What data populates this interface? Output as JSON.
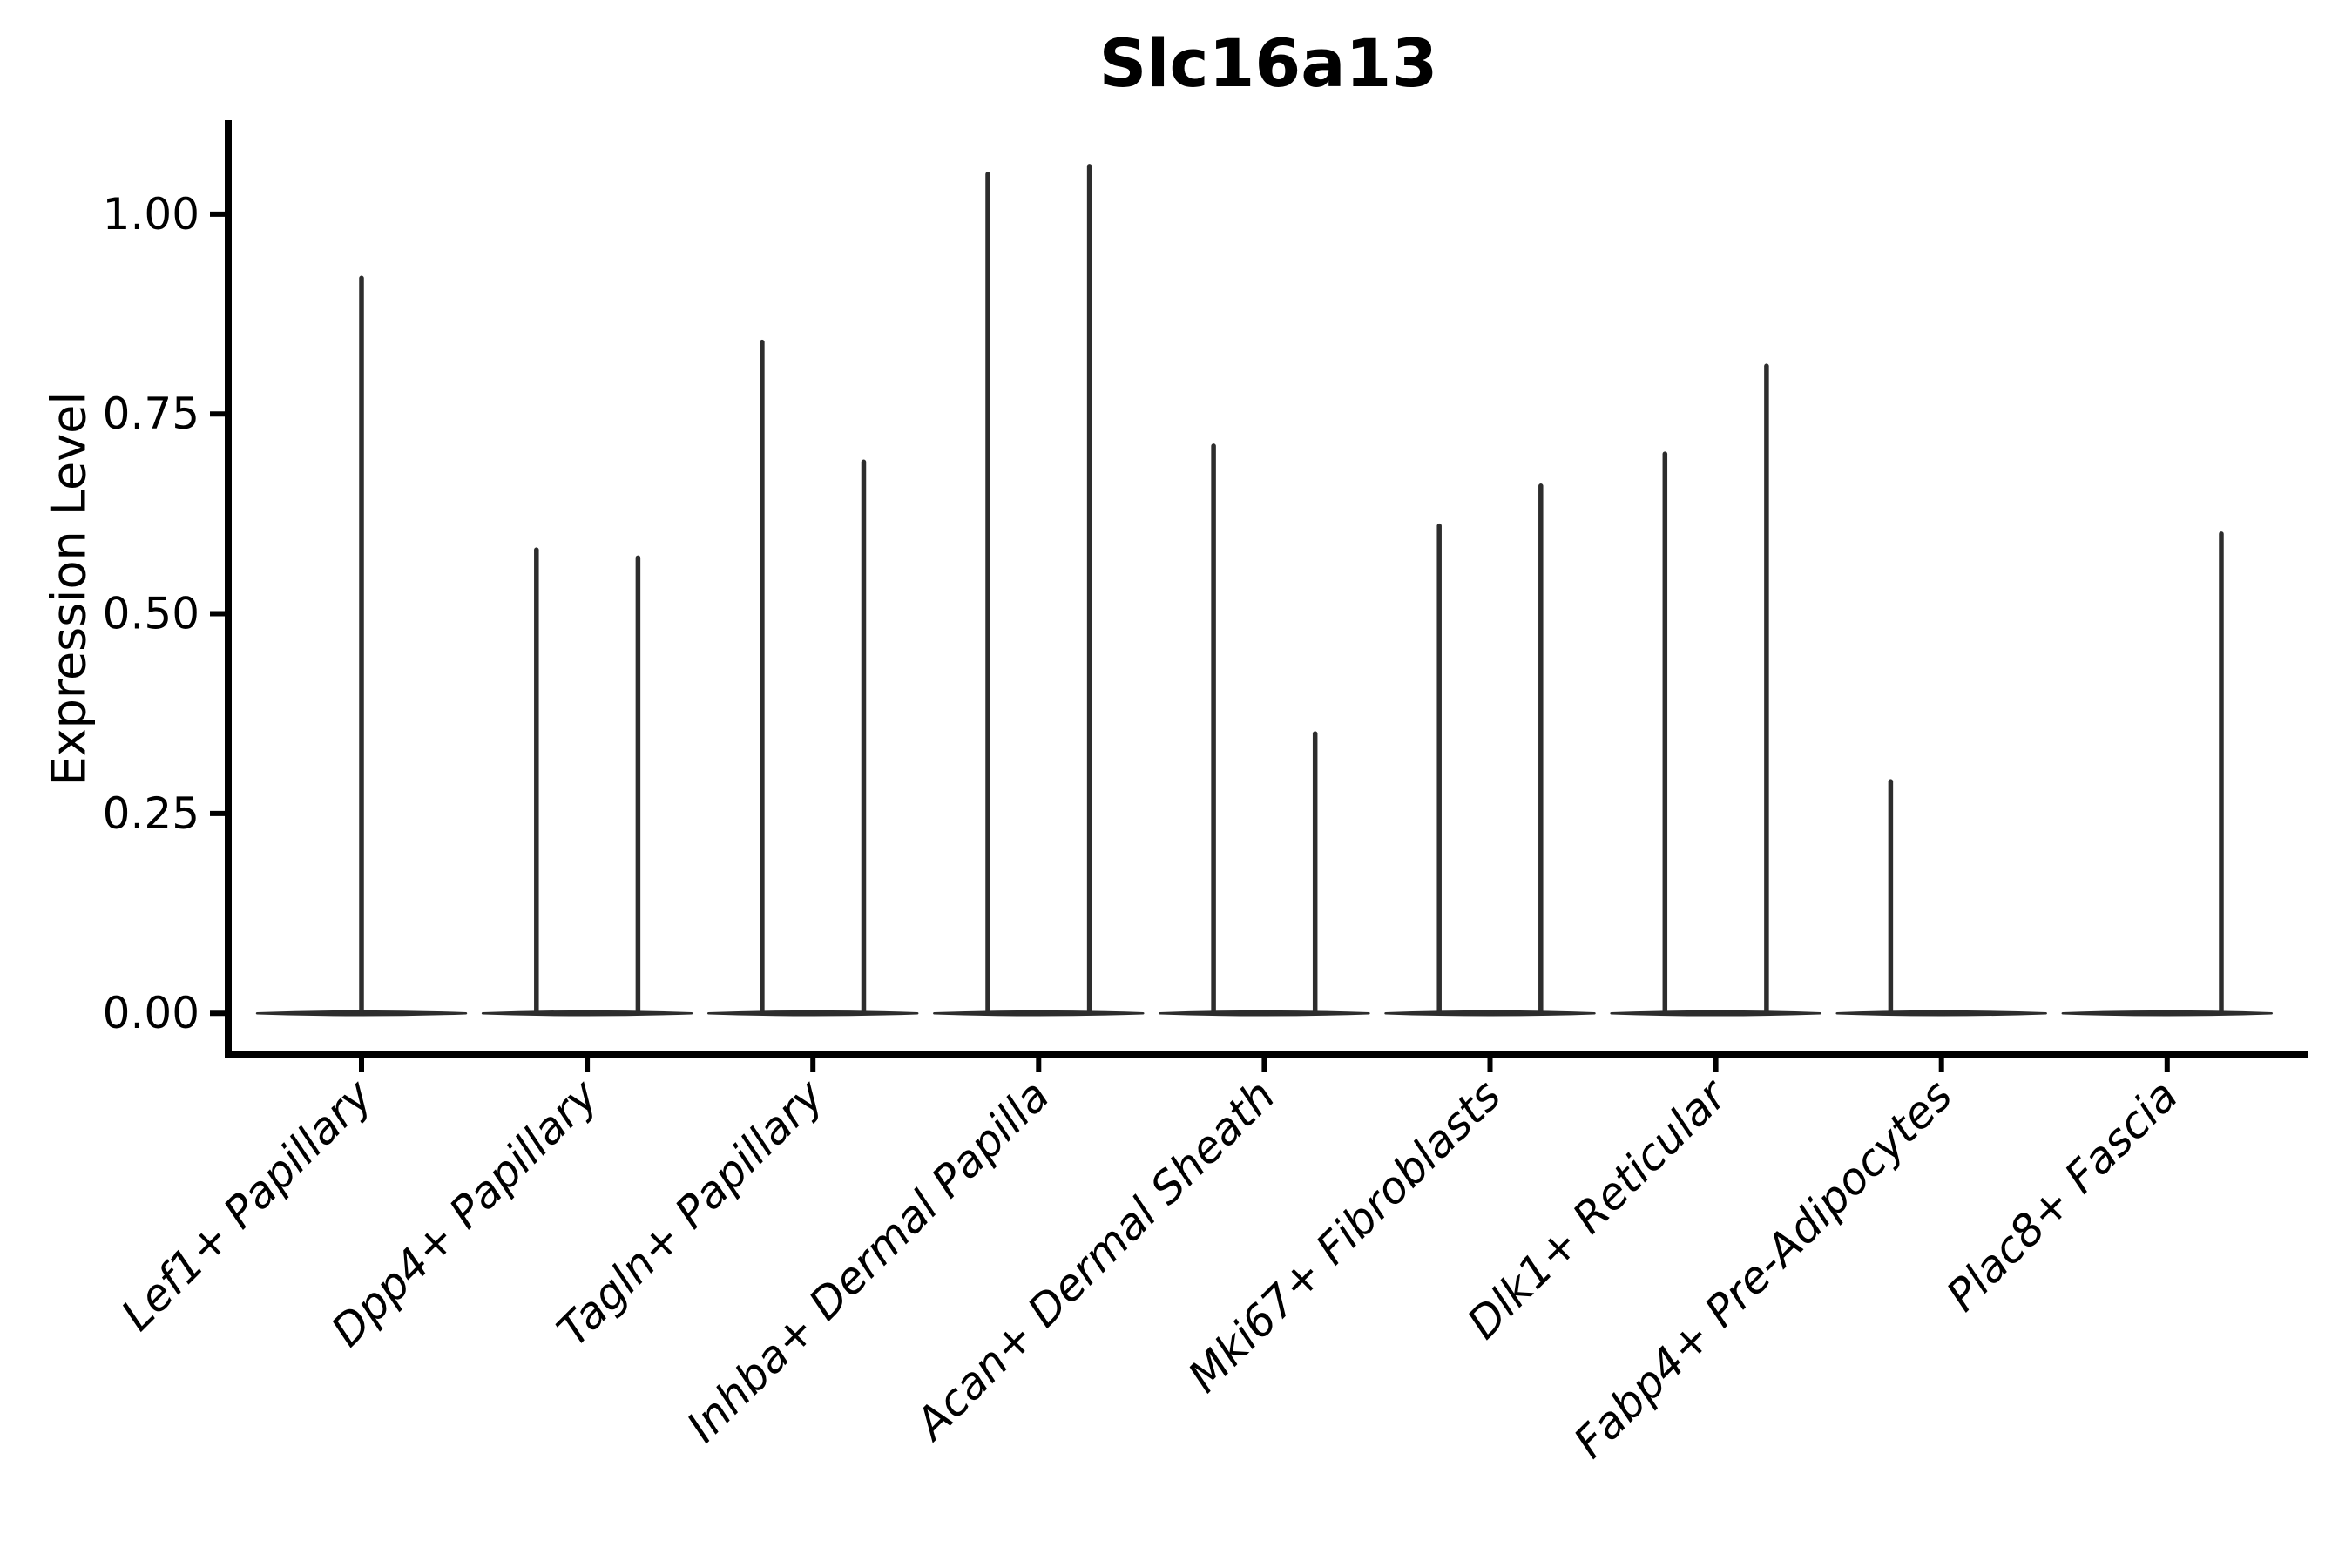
{
  "chart_data": {
    "type": "violin",
    "title": "Slc16a13",
    "xlabel": "",
    "ylabel": "Expression Level",
    "ylim": [
      -0.053,
      1.113
    ],
    "yticks": [
      0,
      0.25,
      0.5,
      0.75,
      1.0
    ],
    "ytick_labels": [
      "0.00",
      "0.25",
      "0.50",
      "0.75",
      "1.00"
    ],
    "grid": false,
    "legend_position": "none",
    "xtick_label_rotation_deg": 45,
    "xtick_label_style": "italic",
    "categories": [
      "Lef1+ Papillary",
      "Dpp4+ Papillary",
      "Tagln+ Papillary",
      "Inhba+ Dermal Papilla",
      "Acan+ Dermal Sheath",
      "Mki67+ Fibroblasts",
      "Dlk1+ Reticular",
      "Fabp4+ Pre-Adipocytes",
      "Plac8+ Fascia"
    ],
    "violins": [
      {
        "label": "Lef1+ Papillary",
        "max_expression": 0.92,
        "spikes": [
          {
            "offset": 0.0,
            "value": 0.92
          }
        ]
      },
      {
        "label": "Dpp4+ Papillary",
        "max_expression": 0.58,
        "spikes": [
          {
            "offset": -0.225,
            "value": 0.58
          },
          {
            "offset": 0.225,
            "value": 0.57
          }
        ]
      },
      {
        "label": "Tagln+ Papillary",
        "max_expression": 0.84,
        "spikes": [
          {
            "offset": -0.225,
            "value": 0.84
          },
          {
            "offset": 0.225,
            "value": 0.69
          }
        ]
      },
      {
        "label": "Inhba+ Dermal Papilla",
        "max_expression": 1.06,
        "spikes": [
          {
            "offset": -0.225,
            "value": 1.05
          },
          {
            "offset": 0.225,
            "value": 1.06
          }
        ]
      },
      {
        "label": "Acan+ Dermal Sheath",
        "max_expression": 0.71,
        "spikes": [
          {
            "offset": -0.225,
            "value": 0.71
          },
          {
            "offset": 0.225,
            "value": 0.35
          }
        ]
      },
      {
        "label": "Mki67+ Fibroblasts",
        "max_expression": 0.66,
        "spikes": [
          {
            "offset": -0.225,
            "value": 0.61
          },
          {
            "offset": 0.225,
            "value": 0.66
          }
        ]
      },
      {
        "label": "Dlk1+ Reticular",
        "max_expression": 0.81,
        "spikes": [
          {
            "offset": -0.225,
            "value": 0.7
          },
          {
            "offset": 0.225,
            "value": 0.81
          }
        ]
      },
      {
        "label": "Fabp4+ Pre-Adipocytes",
        "max_expression": 0.29,
        "spikes": [
          {
            "offset": -0.225,
            "value": 0.29
          }
        ]
      },
      {
        "label": "Plac8+ Fascia",
        "max_expression": 0.6,
        "spikes": [
          {
            "offset": 0.24,
            "value": 0.6
          }
        ]
      }
    ],
    "colors": {
      "violin_line": "#2d2d2d",
      "axis": "#000000",
      "text": "#000000",
      "background": "#ffffff"
    }
  }
}
